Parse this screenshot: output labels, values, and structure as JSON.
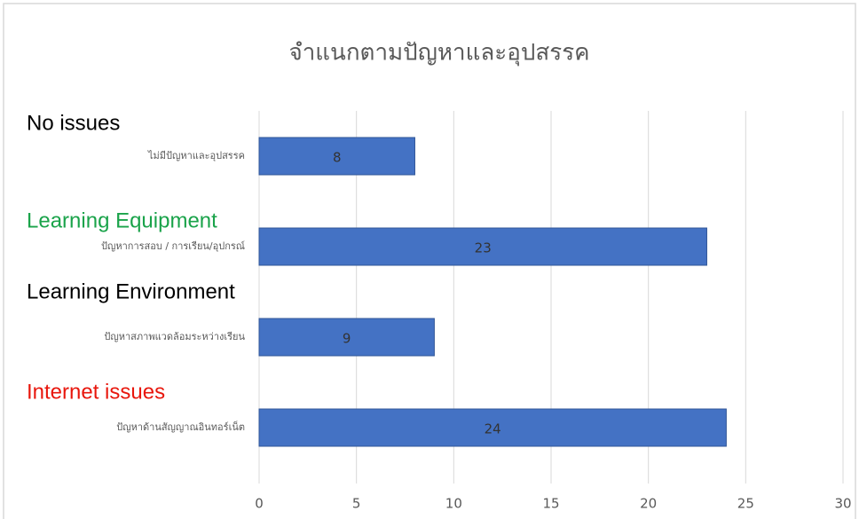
{
  "chart_data": {
    "type": "bar",
    "orientation": "horizontal",
    "title": "จำแนกตามปัญหาและอุปสรรค",
    "categories": [
      "ไม่มีปัญหาและอุปสรรค",
      "ปัญหาการสอบ / การเรียน/อุปกรณ์",
      "ปัญหาสภาพแวดล้อมระหว่างเรียน",
      "ปัญหาด้านสัญญาณอินทอร์เน็ต"
    ],
    "values": [
      8,
      23,
      9,
      24
    ],
    "color": "#4472c4",
    "xlim": [
      0,
      30
    ],
    "xticks": [
      0,
      5,
      10,
      15,
      20,
      25,
      30
    ],
    "grid": true,
    "annotations": [
      {
        "text": "No issues",
        "color": "#000000"
      },
      {
        "text": "Learning Equipment",
        "color": "#1aa34a"
      },
      {
        "text": "Learning Environment",
        "color": "#000000"
      },
      {
        "text": "Internet issues",
        "color": "#e8160c"
      }
    ]
  }
}
